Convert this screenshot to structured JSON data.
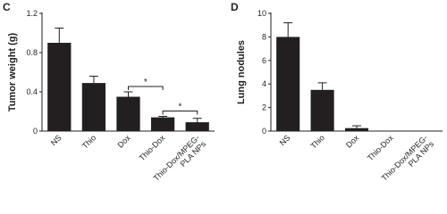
{
  "chart_data": [
    {
      "type": "bar",
      "label": "C",
      "ylabel": "Tumor weight (g)",
      "categories": [
        "NS",
        "Thio",
        "Dox",
        "Thio-Dox",
        "Thio-Dox/MPEG-PLA NPs"
      ],
      "values": [
        0.9,
        0.49,
        0.35,
        0.14,
        0.09
      ],
      "errors": [
        0.15,
        0.07,
        0.05,
        0.01,
        0.04
      ],
      "color": "#231f20",
      "ylim": [
        0,
        1.2
      ],
      "yticks": [
        0,
        0.4,
        0.8,
        1.2
      ],
      "annotations": [
        {
          "text": "*",
          "between": [
            "Dox",
            "Thio-Dox"
          ]
        },
        {
          "text": "*",
          "between": [
            "Thio-Dox",
            "Thio-Dox/MPEG-PLA NPs"
          ]
        }
      ]
    },
    {
      "type": "bar",
      "label": "D",
      "ylabel": "Lung nodules",
      "categories": [
        "NS",
        "Thio",
        "Dox",
        "Thio-Dox",
        "Thio-Dox/MPEG-PLA NPs"
      ],
      "values": [
        8,
        3.5,
        0.25,
        0,
        0
      ],
      "errors": [
        1.2,
        0.6,
        0.2,
        0,
        0
      ],
      "color": "#231f20",
      "ylim": [
        0,
        10
      ],
      "yticks": [
        0,
        2,
        4,
        6,
        8,
        10
      ]
    }
  ]
}
